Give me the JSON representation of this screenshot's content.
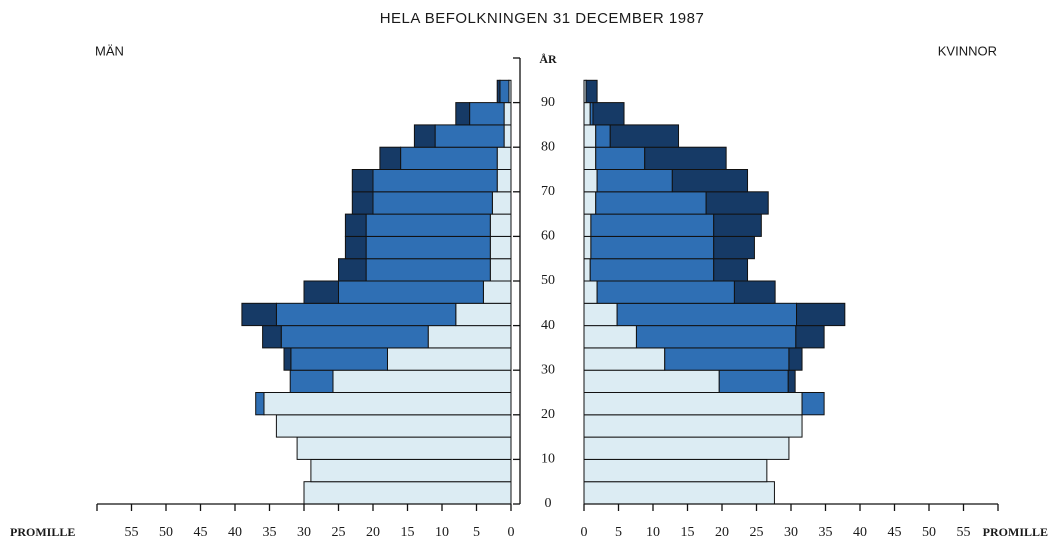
{
  "chart_data": {
    "type": "pyramid",
    "title": "HELA BEFOLKNINGEN 31 DECEMBER 1987",
    "xlabel": "PROMILLE",
    "ylabel": "ÅR",
    "xlim": [
      0,
      60
    ],
    "xticks": [
      0,
      5,
      10,
      15,
      20,
      25,
      30,
      35,
      40,
      45,
      50,
      55
    ],
    "ylim": [
      0,
      100
    ],
    "yticks": [
      0,
      10,
      20,
      30,
      40,
      50,
      60,
      70,
      80,
      90
    ],
    "bins": [
      0,
      5,
      10,
      15,
      20,
      25,
      30,
      35,
      40,
      45,
      50,
      55,
      60,
      65,
      70,
      75,
      80,
      85,
      90,
      95
    ],
    "left": {
      "label": "MÄN",
      "series": [
        {
          "color": "#dcecf3",
          "values": [
            30,
            29,
            31,
            34,
            35.8,
            25.8,
            17.9,
            12,
            8,
            4,
            3,
            3,
            3,
            2.7,
            2,
            2,
            1,
            1,
            0.3
          ]
        },
        {
          "color": "#2f6fb4",
          "values": [
            0,
            0,
            0,
            0,
            1.2,
            6.2,
            14,
            21.3,
            26,
            21,
            18,
            18,
            18,
            17.3,
            18,
            14,
            10,
            5,
            1.3
          ]
        },
        {
          "color": "#163a66",
          "values": [
            0,
            0,
            0,
            0,
            0,
            0,
            1,
            2.7,
            5,
            5,
            4,
            3,
            3,
            3,
            3,
            3,
            3,
            2,
            0.4
          ]
        }
      ]
    },
    "right": {
      "label": "KVINNOR",
      "series": [
        {
          "color": "#dcecf3",
          "values": [
            27.6,
            26.5,
            29.7,
            31.6,
            31.6,
            19.6,
            11.7,
            7.6,
            4.8,
            1.9,
            0.9,
            1,
            1,
            1.7,
            1.9,
            1.7,
            1.7,
            0.9,
            0.3
          ]
        },
        {
          "color": "#2f6fb4",
          "values": [
            0,
            0,
            0,
            0,
            3.2,
            10,
            18,
            23.1,
            26,
            19.9,
            17.9,
            17.8,
            17.8,
            16,
            10.9,
            7.1,
            2.1,
            0.4,
            0
          ]
        },
        {
          "color": "#163a66",
          "values": [
            0,
            0,
            0,
            0,
            0,
            1,
            1.9,
            4.1,
            7,
            5.9,
            4.9,
            5.9,
            6.9,
            9,
            10.9,
            11.8,
            9.9,
            4.5,
            1.6
          ]
        }
      ]
    }
  }
}
